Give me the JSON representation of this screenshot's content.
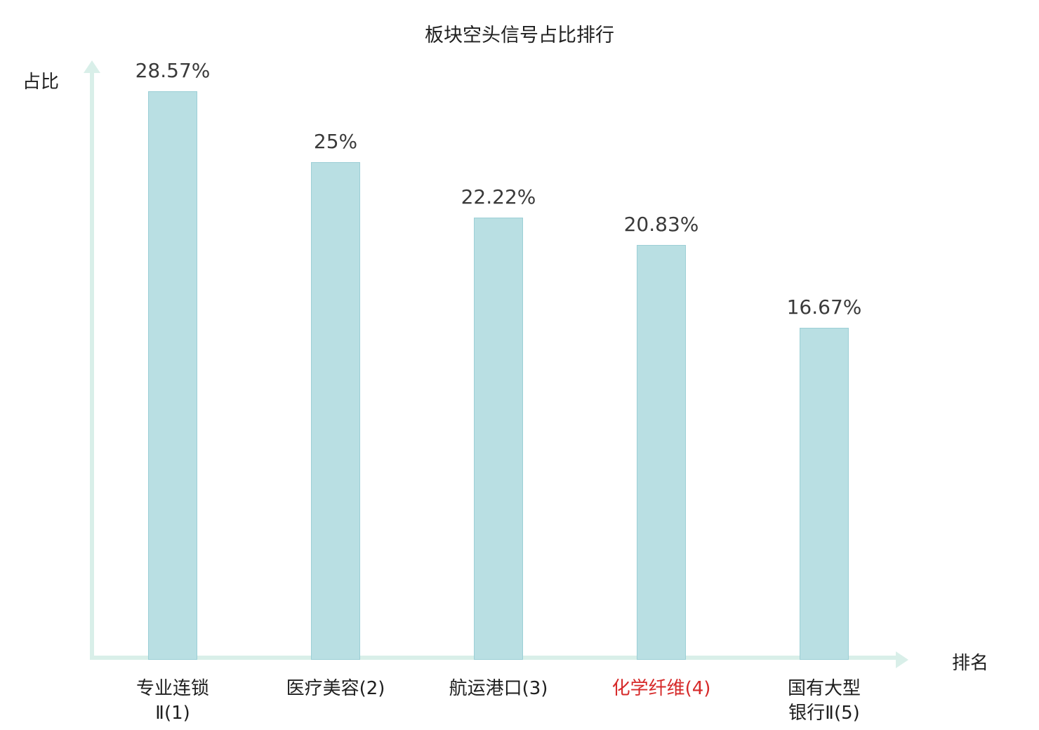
{
  "title": "板块空头信号占比排行",
  "ylabel": "占比",
  "xlabel": "排名",
  "colors": {
    "bar_fill": "#b9dfe3",
    "bar_border": "#9ccfd6",
    "axis": "#d9efe9",
    "value_label": "#3a3a3a",
    "highlight": "#d62a2a"
  },
  "chart_data": {
    "type": "bar",
    "title": "板块空头信号占比排行",
    "xlabel": "排名",
    "ylabel": "占比",
    "categories": [
      "专业连锁\nⅡ(1)",
      "医疗美容(2)",
      "航运港口(3)",
      "化学纤维(4)",
      "国有大型\n银行Ⅱ(5)"
    ],
    "values": [
      28.57,
      25,
      22.22,
      20.83,
      16.67
    ],
    "value_labels": [
      "28.57%",
      "25%",
      "22.22%",
      "20.83%",
      "16.67%"
    ],
    "highlight_index": 3,
    "ylim": [
      0,
      30
    ],
    "grid": false,
    "legend": "none"
  }
}
